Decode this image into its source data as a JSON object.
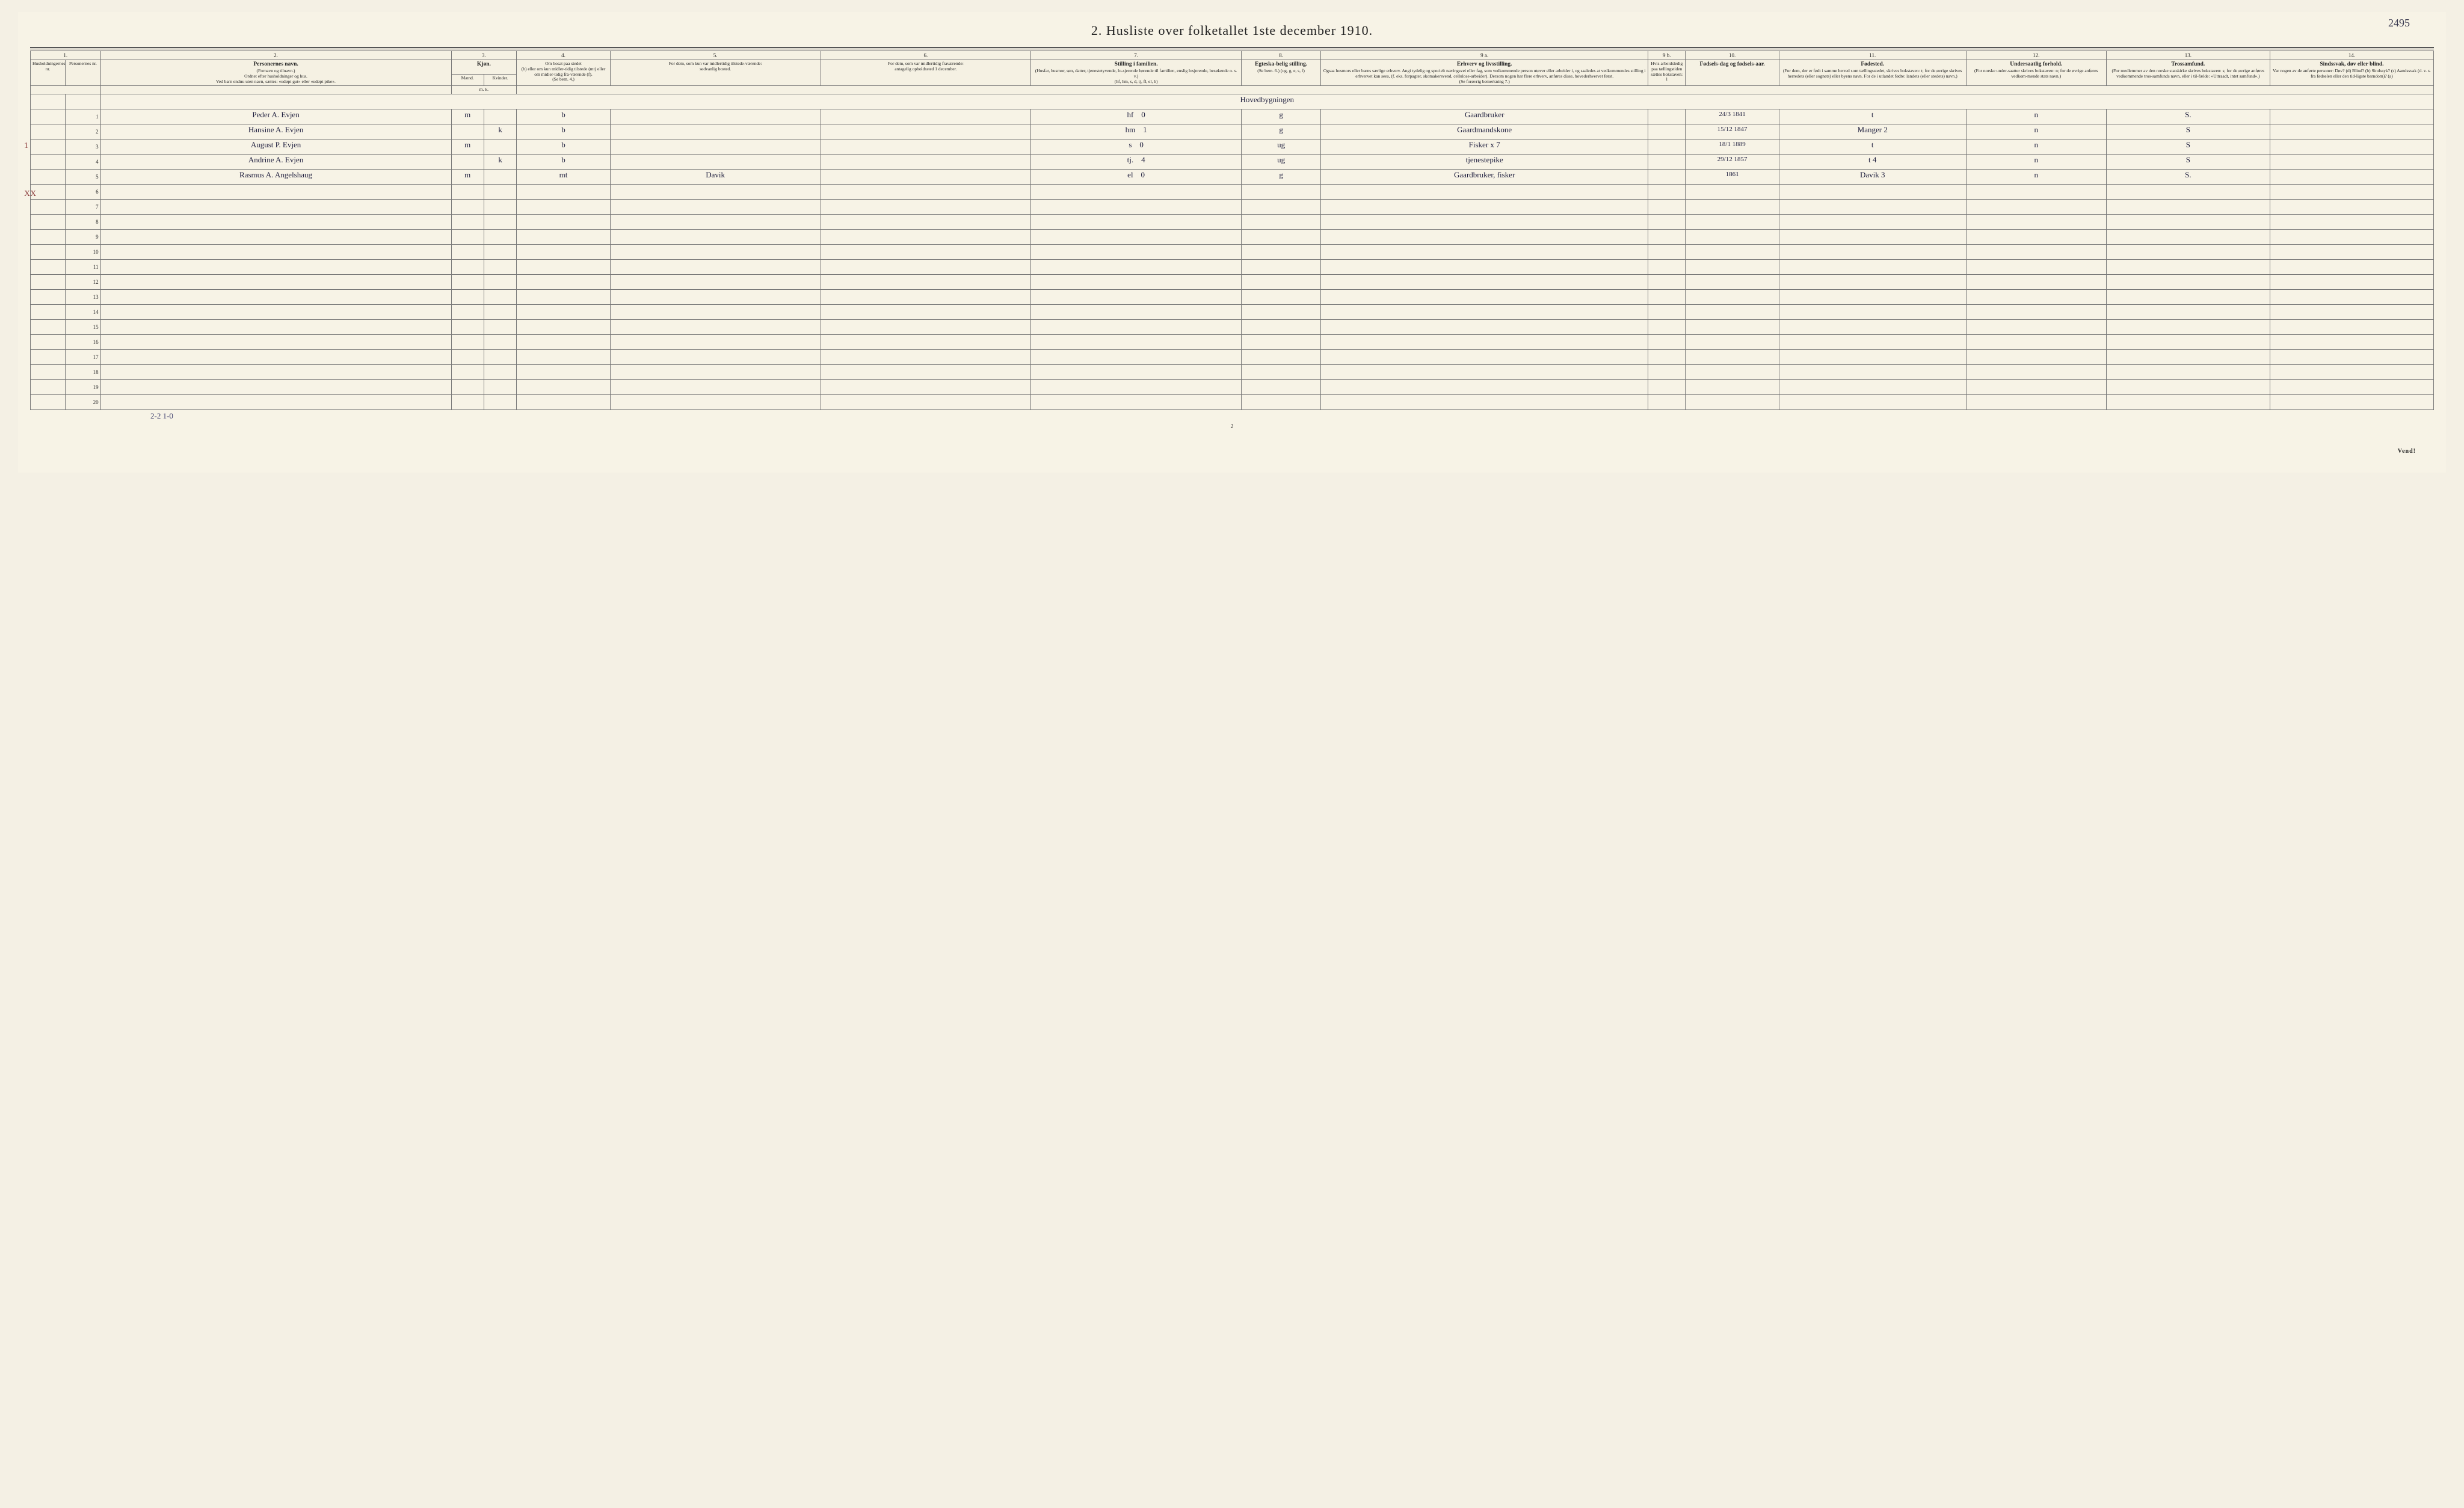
{
  "page": {
    "handwritten_top_right": "2495",
    "title": "2.  Husliste over folketallet 1ste december 1910.",
    "page_number": "2",
    "turn_over": "Vend!",
    "footer_tally": "2-2    1-0"
  },
  "margin_marks": {
    "row1": "1",
    "row5": "XX"
  },
  "columns": {
    "numbers": [
      "1.",
      "2.",
      "3.",
      "4.",
      "5.",
      "6.",
      "7.",
      "8.",
      "9 a.",
      "9 b.",
      "10.",
      "11.",
      "12.",
      "13.",
      "14."
    ],
    "kjon_header": "Kjøn.",
    "kjon_m": "Mænd.",
    "kjon_k": "Kvinder.",
    "kjon_mk": "m.  k.",
    "h1": {
      "a": "Husholdningernes nr.",
      "b": "Personernes nr."
    },
    "h2": {
      "main": "Personernes navn.",
      "sub1": "(Fornavn og tilnavn.)",
      "sub2": "Ordnet efter husholdninger og hus.",
      "sub3": "Ved barn endnu uten navn, sættes: «udøpt gut» eller «udøpt pike»."
    },
    "h4": {
      "main": "Om bosat paa stedet",
      "sub": "(b) eller om kun midler-tidig tilstede (mt) eller om midler-tidig fra-værende (f).",
      "foot": "(Se bem. 4.)"
    },
    "h5": {
      "main": "For dem, som kun var midlertidig tilstede-værende:",
      "sub": "sedvanlig bosted."
    },
    "h6": {
      "main": "For dem, som var midlertidig fraværende:",
      "sub": "antagelig opholdssted 1 december."
    },
    "h7": {
      "main": "Stilling i familien.",
      "sub1": "(Husfar, husmor, søn, datter, tjenestetyvende, lo-sjerende hørende til familien, enslig losjerende, besøkende o. s. v.)",
      "sub2": "(hf, hm, s, d, tj, fl, el, b)"
    },
    "h8": {
      "main": "Egteska-belig stilling.",
      "sub": "(Se bem. 6.) (ug, g, e, s, f)"
    },
    "h9a": {
      "main": "Erhverv og livsstilling.",
      "sub": "Ogsaa husmors eller barns særlige erhverv. Angi tydelig og specielt næringsvei eller fag, som vedkommende person utøver eller arbeider i, og saaledes at vedkommendes stilling i erhvervet kan sees, (f. eks. forpagter, skomakersvend, cellulose-arbeider). Dersom nogen har flere erhverv, anføres disse, hovederhvervet først.",
      "foot": "(Se forøvrig bemerkning 7.)"
    },
    "h9b": {
      "sub": "Hvis arbeidsledig paa tællingstiden sættes bokstaven: l"
    },
    "h10": {
      "main": "Fødsels-dag og fødsels-aar."
    },
    "h11": {
      "main": "Fødested.",
      "sub": "(For dem, der er født i samme herred som tællingsstedet, skrives bokstaven: t; for de øvrige skrives herredets (eller sognets) eller byens navn. For de i utlandet fødte: landets (eller stedets) navn.)"
    },
    "h12": {
      "main": "Undersaatlig forhold.",
      "sub": "(For norske under-saatter skrives bokstaven: n; for de øvrige anføres vedkom-mende stats navn.)"
    },
    "h13": {
      "main": "Trossamfund.",
      "sub": "(For medlemmer av den norske statskirke skrives bokstaven: s; for de øvrige anføres vedkommende tros-samfunds navn, eller i til-fælde: «Uttraadt, intet samfund».)"
    },
    "h14": {
      "main": "Sindssvak, døv eller blind.",
      "sub": "Var nogen av de anførte personer: Døv? (d) Blind? (b) Sindssyk? (s) Aandssvak (d. v. s. fra fødselen eller den tid-ligste barndom)? (a)"
    }
  },
  "rows": [
    {
      "num": "1",
      "heading": "Hovedbygningen",
      "name": "Peder A. Evjen",
      "sex": "m",
      "res": "b",
      "c5": "",
      "c6": "",
      "fam": "hf",
      "fam_extra": "0",
      "mar": "g",
      "occ": "Gaardbruker",
      "birth": "24/3 1841",
      "place": "t",
      "nat": "n",
      "rel": "S.",
      "c14": ""
    },
    {
      "num": "2",
      "name": "Hansine A. Evjen",
      "sex": "k",
      "res": "b",
      "c5": "",
      "c6": "",
      "fam": "hm",
      "fam_extra": "1",
      "mar": "g",
      "occ": "Gaardmandskone",
      "birth": "15/12 1847",
      "place": "Manger 2",
      "nat": "n",
      "rel": "S",
      "c14": ""
    },
    {
      "num": "3",
      "name": "August P. Evjen",
      "sex": "m",
      "res": "b",
      "c5": "",
      "c6": "",
      "fam": "s",
      "fam_extra": "0",
      "mar": "ug",
      "occ": "Fisker  x 7",
      "birth": "18/1 1889",
      "place": "t",
      "nat": "n",
      "rel": "S",
      "c14": ""
    },
    {
      "num": "4",
      "name": "Andrine A. Evjen",
      "sex": "k",
      "res": "b",
      "c5": "",
      "c6": "",
      "fam": "tj.",
      "fam_extra": "4",
      "mar": "ug",
      "occ": "tjenestepike",
      "birth": "29/12 1857",
      "place": "t   4",
      "nat": "n",
      "rel": "S",
      "c14": ""
    },
    {
      "num": "5",
      "name": "Rasmus A. Angelshaug",
      "sex": "m",
      "res": "mt",
      "c5": "Davik",
      "c6": "",
      "fam": "el",
      "fam_extra": "0",
      "mar": "g",
      "occ": "Gaardbruker, fisker",
      "birth": "1861",
      "place": "Davik 3",
      "nat": "n",
      "rel": "S.",
      "c14": ""
    },
    {
      "num": "6"
    },
    {
      "num": "7"
    },
    {
      "num": "8"
    },
    {
      "num": "9"
    },
    {
      "num": "10"
    },
    {
      "num": "11"
    },
    {
      "num": "12"
    },
    {
      "num": "13"
    },
    {
      "num": "14"
    },
    {
      "num": "15"
    },
    {
      "num": "16"
    },
    {
      "num": "17"
    },
    {
      "num": "18"
    },
    {
      "num": "19"
    },
    {
      "num": "20"
    }
  ],
  "colwidths": {
    "c1a": "1.5%",
    "c1b": "1.5%",
    "c2": "15%",
    "c3a": "1.4%",
    "c3b": "1.4%",
    "c4": "4%",
    "c5": "9%",
    "c6": "9%",
    "c7": "9%",
    "c8": "3.4%",
    "c9a": "14%",
    "c9b": "1.6%",
    "c10": "4%",
    "c11": "8%",
    "c12": "6%",
    "c13": "7%",
    "c14": "7%"
  },
  "styling": {
    "background": "#f7f3e6",
    "border_color": "#777777",
    "header_font_size": 8.5,
    "body_font_size": 13,
    "handwriting_color": "#1a1a3a",
    "margin_mark_color": "#8a3a3a"
  }
}
